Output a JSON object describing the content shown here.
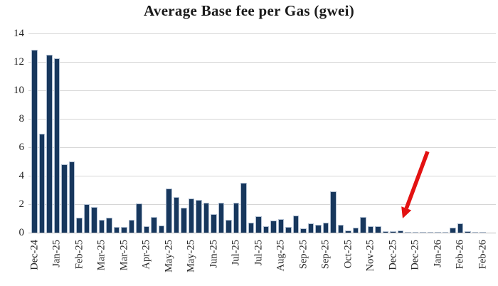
{
  "chart_data": {
    "type": "bar",
    "title": "Average Base fee per Gas (gwei)",
    "xlabel": "",
    "ylabel": "",
    "ylim": [
      0,
      14
    ],
    "yticks": [
      0,
      2,
      4,
      6,
      8,
      10,
      12,
      14
    ],
    "grid": true,
    "legend": "none",
    "n_bars": 61,
    "x_tick_label_every_n_bars": 3,
    "x_tick_labels": [
      "Dec-24",
      "Jan-25",
      "Feb-25",
      "Mar-25",
      "Mar-25",
      "Apr-25",
      "May-25",
      "May-25",
      "Jun-25",
      "Jul-25",
      "Jul-25",
      "Aug-25",
      "Sep-25",
      "Sep-25",
      "Oct-25",
      "Nov-25",
      "Dec-25",
      "Dec-25",
      "Jan-26",
      "Feb-26",
      "Feb-26"
    ],
    "values": [
      12.85,
      6.95,
      12.5,
      12.25,
      4.8,
      5.0,
      1.05,
      2.0,
      1.8,
      0.9,
      1.05,
      0.4,
      0.4,
      0.9,
      2.05,
      0.45,
      1.1,
      0.5,
      3.1,
      2.5,
      1.75,
      2.4,
      2.3,
      2.1,
      1.3,
      2.1,
      0.9,
      2.1,
      3.5,
      0.7,
      1.15,
      0.45,
      0.85,
      0.95,
      0.4,
      1.2,
      0.3,
      0.65,
      0.55,
      0.72,
      2.9,
      0.55,
      0.15,
      0.33,
      1.1,
      0.45,
      0.45,
      0.1,
      0.08,
      0.15,
      0.02,
      0.02,
      0.05,
      0.05,
      0.05,
      0.03,
      0.35,
      0.65,
      0.1,
      0.02,
      0.07
    ],
    "colors": {
      "bar": "#17375d",
      "bar_edge": "#aebdd0",
      "gridline": "#d6d6d6",
      "axis_line": "#bcbcbc",
      "tick_text": "#262626",
      "title_text": "#1a1a1a",
      "background": "#ffffff",
      "annotation_arrow": "#e31212"
    },
    "annotation": {
      "shape": "arrow",
      "description": "red arrow pointing down-left at the near-zero Dec-25 bar",
      "target_label": "Dec-25",
      "target_bar_index": 49
    }
  }
}
